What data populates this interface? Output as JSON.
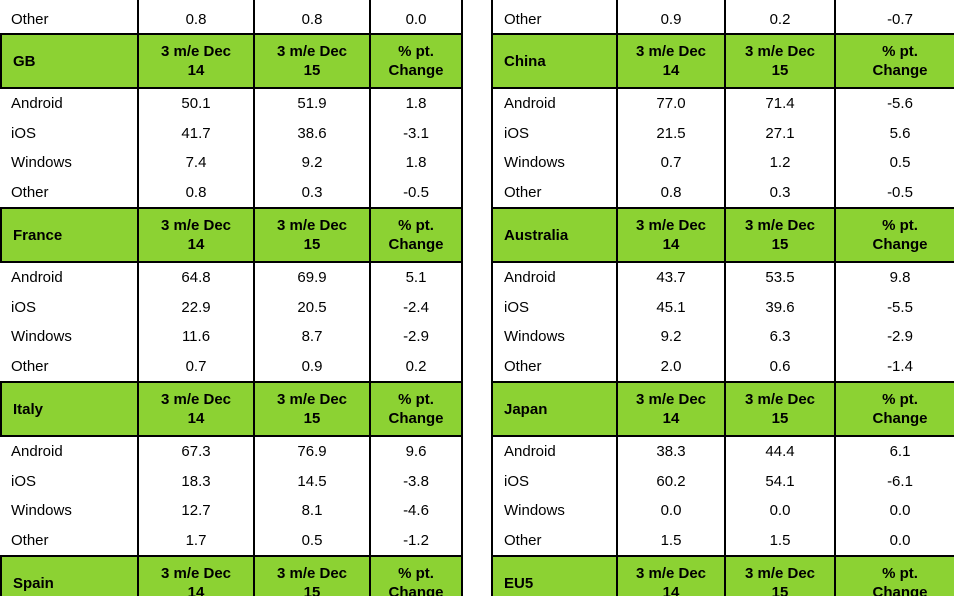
{
  "colors": {
    "header_green": "#8cd233",
    "border_black": "#000000",
    "text_black": "#000000"
  },
  "column_headers": [
    "3 m/e Dec\n14",
    "3 m/e Dec\n15",
    "% pt.\nChange"
  ],
  "os_labels": [
    "Android",
    "iOS",
    "Windows",
    "Other"
  ],
  "tables": {
    "left": {
      "partial_top_row": {
        "label": "Other",
        "values": [
          "0.8",
          "0.8",
          "0.0"
        ]
      },
      "blocks": [
        {
          "country": "GB",
          "rows": [
            {
              "label": "Android",
              "values": [
                "50.1",
                "51.9",
                "1.8"
              ]
            },
            {
              "label": "iOS",
              "values": [
                "41.7",
                "38.6",
                "-3.1"
              ]
            },
            {
              "label": "Windows",
              "values": [
                "7.4",
                "9.2",
                "1.8"
              ]
            },
            {
              "label": "Other",
              "values": [
                "0.8",
                "0.3",
                "-0.5"
              ]
            }
          ]
        },
        {
          "country": "France",
          "rows": [
            {
              "label": "Android",
              "values": [
                "64.8",
                "69.9",
                "5.1"
              ]
            },
            {
              "label": "iOS",
              "values": [
                "22.9",
                "20.5",
                "-2.4"
              ]
            },
            {
              "label": "Windows",
              "values": [
                "11.6",
                "8.7",
                "-2.9"
              ]
            },
            {
              "label": "Other",
              "values": [
                "0.7",
                "0.9",
                "0.2"
              ]
            }
          ]
        },
        {
          "country": "Italy",
          "rows": [
            {
              "label": "Android",
              "values": [
                "67.3",
                "76.9",
                "9.6"
              ]
            },
            {
              "label": "iOS",
              "values": [
                "18.3",
                "14.5",
                "-3.8"
              ]
            },
            {
              "label": "Windows",
              "values": [
                "12.7",
                "8.1",
                "-4.6"
              ]
            },
            {
              "label": "Other",
              "values": [
                "1.7",
                "0.5",
                "-1.2"
              ]
            }
          ]
        },
        {
          "country": "Spain",
          "rows": []
        }
      ]
    },
    "right": {
      "partial_top_row": {
        "label": "Other",
        "values": [
          "0.9",
          "0.2",
          "-0.7"
        ]
      },
      "blocks": [
        {
          "country": "China",
          "rows": [
            {
              "label": "Android",
              "values": [
                "77.0",
                "71.4",
                "-5.6"
              ]
            },
            {
              "label": "iOS",
              "values": [
                "21.5",
                "27.1",
                "5.6"
              ]
            },
            {
              "label": "Windows",
              "values": [
                "0.7",
                "1.2",
                "0.5"
              ]
            },
            {
              "label": "Other",
              "values": [
                "0.8",
                "0.3",
                "-0.5"
              ]
            }
          ]
        },
        {
          "country": "Australia",
          "rows": [
            {
              "label": "Android",
              "values": [
                "43.7",
                "53.5",
                "9.8"
              ]
            },
            {
              "label": "iOS",
              "values": [
                "45.1",
                "39.6",
                "-5.5"
              ]
            },
            {
              "label": "Windows",
              "values": [
                "9.2",
                "6.3",
                "-2.9"
              ]
            },
            {
              "label": "Other",
              "values": [
                "2.0",
                "0.6",
                "-1.4"
              ]
            }
          ]
        },
        {
          "country": "Japan",
          "rows": [
            {
              "label": "Android",
              "values": [
                "38.3",
                "44.4",
                "6.1"
              ]
            },
            {
              "label": "iOS",
              "values": [
                "60.2",
                "54.1",
                "-6.1"
              ]
            },
            {
              "label": "Windows",
              "values": [
                "0.0",
                "0.0",
                "0.0"
              ]
            },
            {
              "label": "Other",
              "values": [
                "1.5",
                "1.5",
                "0.0"
              ]
            }
          ]
        },
        {
          "country": "EU5",
          "rows": []
        }
      ]
    }
  }
}
